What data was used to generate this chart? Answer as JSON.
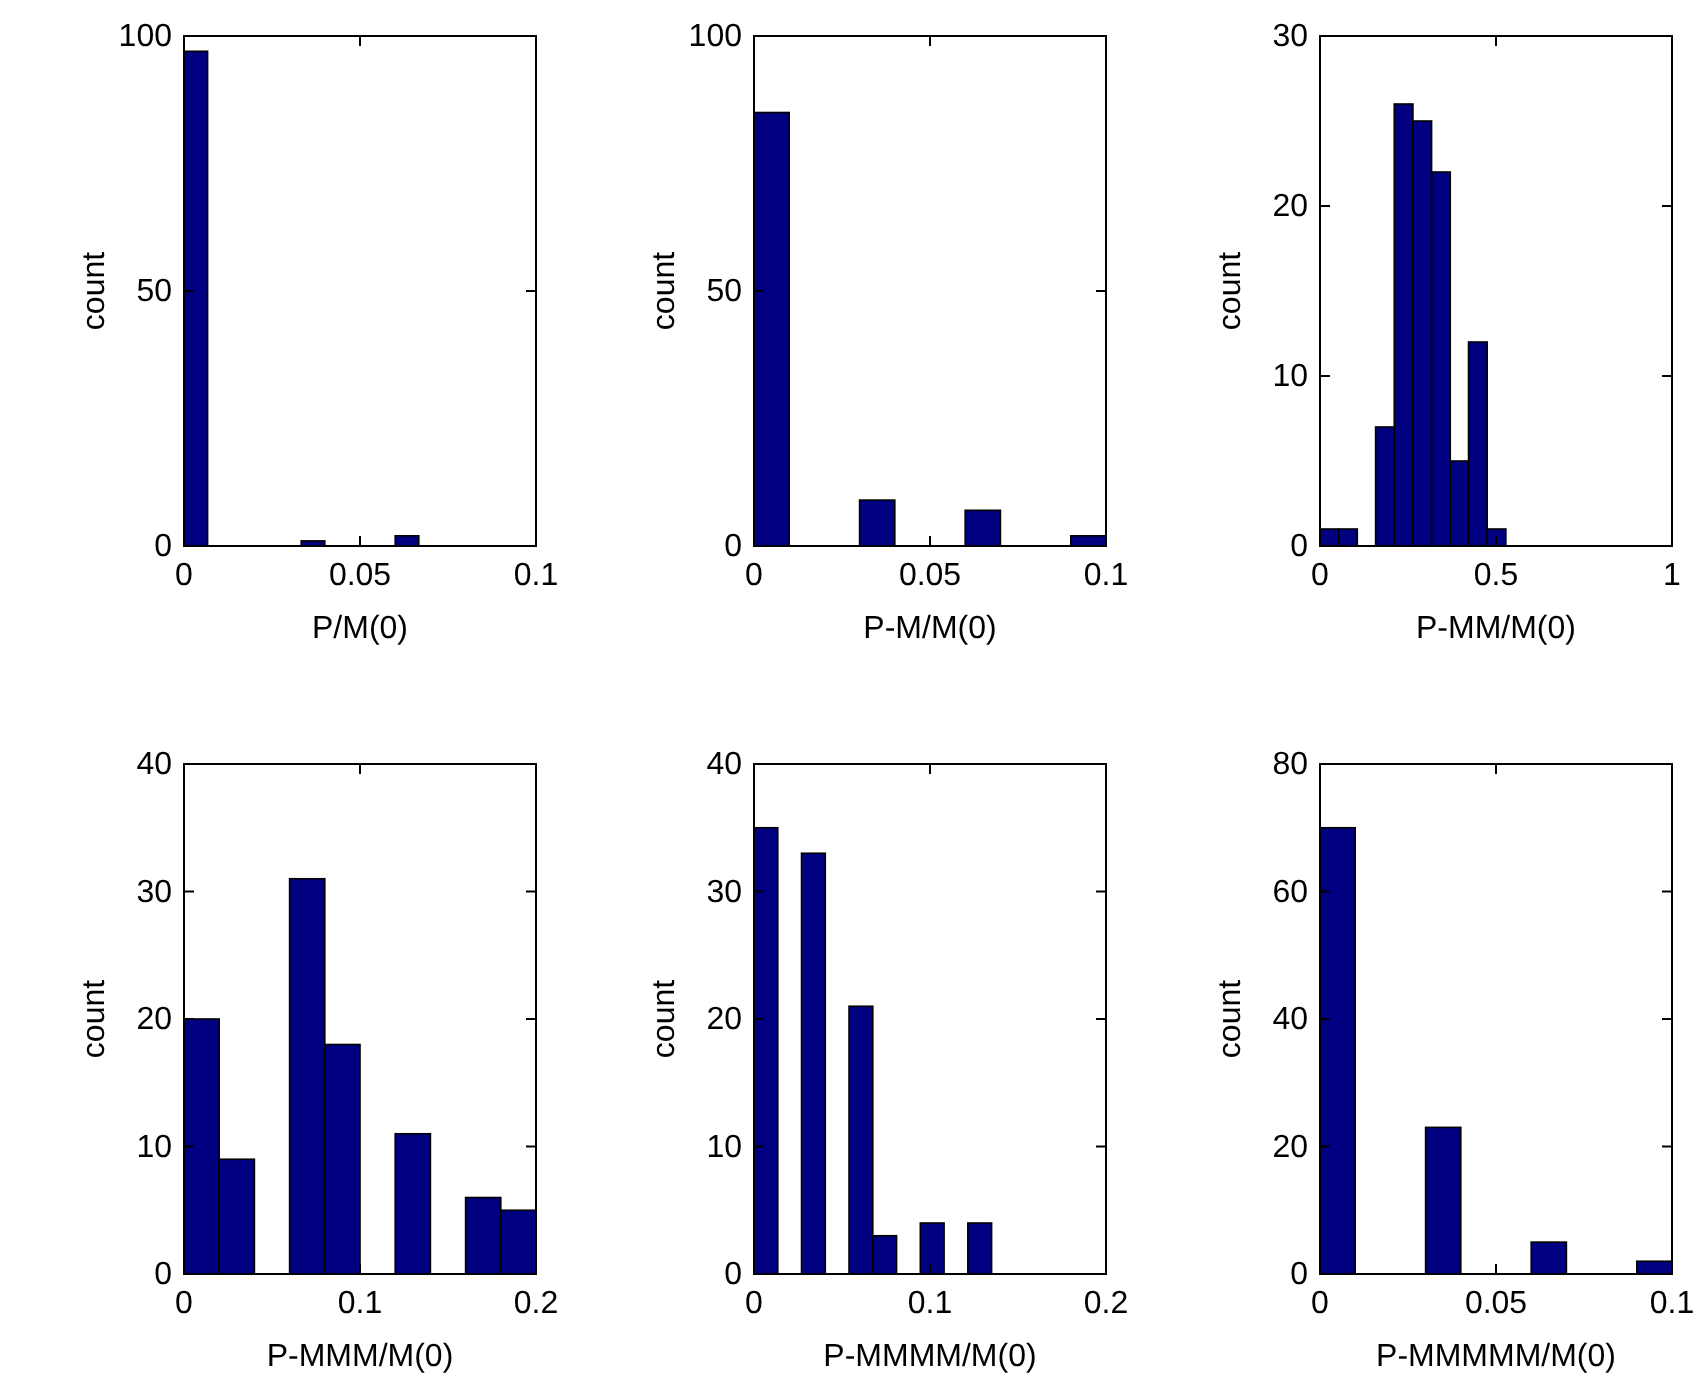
{
  "chart_data": [
    {
      "type": "histogram",
      "xlabel": "P/M(0)",
      "ylabel": "count",
      "bins": [
        0,
        0.0067,
        0.0133,
        0.02,
        0.0267,
        0.0333,
        0.04,
        0.0467,
        0.0533,
        0.06,
        0.0667
      ],
      "values": [
        97,
        0,
        0,
        0,
        0,
        1,
        0,
        0,
        0,
        2
      ],
      "color": "#000080",
      "xlim": [
        0,
        0.1
      ],
      "xticks": [
        0,
        0.05,
        0.1
      ],
      "ylim": [
        0,
        100
      ],
      "yticks": [
        0,
        50,
        100
      ]
    },
    {
      "type": "histogram",
      "xlabel": "P-M/M(0)",
      "ylabel": "count",
      "bins": [
        0,
        0.01,
        0.02,
        0.03,
        0.04,
        0.05,
        0.06,
        0.07,
        0.08,
        0.09,
        0.1
      ],
      "values": [
        85,
        0,
        0,
        9,
        0,
        0,
        7,
        0,
        0,
        2
      ],
      "color": "#000080",
      "xlim": [
        0,
        0.1
      ],
      "xticks": [
        0,
        0.05,
        0.1
      ],
      "ylim": [
        0,
        100
      ],
      "yticks": [
        0,
        50,
        100
      ]
    },
    {
      "type": "histogram",
      "xlabel": "P-MM/M(0)",
      "ylabel": "count",
      "bins": [
        0,
        0.053,
        0.106,
        0.158,
        0.211,
        0.264,
        0.317,
        0.37,
        0.422,
        0.475,
        0.528
      ],
      "values": [
        1,
        1,
        0,
        7,
        26,
        25,
        22,
        5,
        12,
        1
      ],
      "color": "#000080",
      "xlim": [
        0,
        1
      ],
      "xticks": [
        0,
        0.5,
        1
      ],
      "ylim": [
        0,
        30
      ],
      "yticks": [
        0,
        10,
        20,
        30
      ]
    },
    {
      "type": "histogram",
      "xlabel": "P-MMM/M(0)",
      "ylabel": "count",
      "bins": [
        0,
        0.02,
        0.04,
        0.06,
        0.08,
        0.1,
        0.12,
        0.14,
        0.16,
        0.18,
        0.2
      ],
      "values": [
        20,
        9,
        0,
        31,
        18,
        0,
        11,
        0,
        6,
        5
      ],
      "color": "#000080",
      "xlim": [
        0,
        0.2
      ],
      "xticks": [
        0,
        0.1,
        0.2
      ],
      "ylim": [
        0,
        40
      ],
      "yticks": [
        0,
        10,
        20,
        30,
        40
      ]
    },
    {
      "type": "histogram",
      "xlabel": "P-MMMM/M(0)",
      "ylabel": "count",
      "bins": [
        0,
        0.0135,
        0.027,
        0.0405,
        0.054,
        0.0675,
        0.081,
        0.0945,
        0.108,
        0.1215,
        0.135
      ],
      "values": [
        35,
        0,
        33,
        0,
        21,
        3,
        0,
        4,
        0,
        4
      ],
      "color": "#000080",
      "xlim": [
        0,
        0.2
      ],
      "xticks": [
        0,
        0.1,
        0.2
      ],
      "ylim": [
        0,
        40
      ],
      "yticks": [
        0,
        10,
        20,
        30,
        40
      ]
    },
    {
      "type": "histogram",
      "xlabel": "P-MMMMM/M(0)",
      "ylabel": "count",
      "bins": [
        0,
        0.01,
        0.02,
        0.03,
        0.04,
        0.05,
        0.06,
        0.07,
        0.08,
        0.09,
        0.1
      ],
      "values": [
        70,
        0,
        0,
        23,
        0,
        0,
        5,
        0,
        0,
        2
      ],
      "color": "#000080",
      "xlim": [
        0,
        0.1
      ],
      "xticks": [
        0,
        0.05,
        0.1
      ],
      "ylim": [
        0,
        80
      ],
      "yticks": [
        0,
        20,
        40,
        60,
        80
      ]
    }
  ]
}
